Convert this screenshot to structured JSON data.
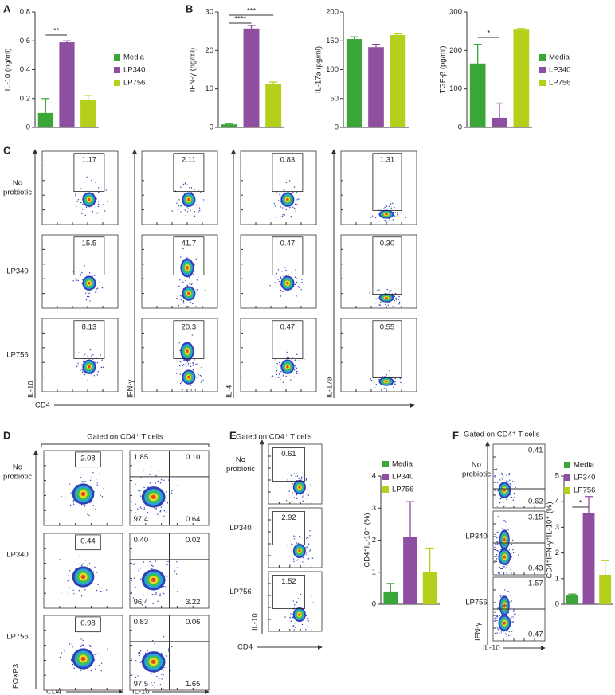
{
  "panel_labels": [
    "A",
    "B",
    "C",
    "D",
    "E",
    "F"
  ],
  "chart_data": [
    {
      "type": "bar",
      "y_label": "IL-10 (ng/ml)",
      "ylim": [
        0,
        0.8
      ],
      "yticks": [
        0,
        0.2,
        0.4,
        0.6,
        0.8
      ],
      "legend": true,
      "annotations": [
        "**"
      ],
      "series": [
        {
          "name": "Media",
          "color": "#3aa638",
          "values": [
            0.1
          ],
          "errors": [
            0.1
          ]
        },
        {
          "name": "LP340",
          "color": "#8e4fa0",
          "values": [
            0.59
          ],
          "errors": [
            0.01
          ]
        },
        {
          "name": "LP756",
          "color": "#b5cf1b",
          "values": [
            0.19
          ],
          "errors": [
            0.03
          ]
        }
      ]
    },
    {
      "type": "bar",
      "y_label": "IFN-γ (ng/ml)",
      "ylim": [
        0,
        30
      ],
      "yticks": [
        0,
        10,
        20,
        30
      ],
      "legend": false,
      "annotations": [
        "****",
        "***"
      ],
      "series": [
        {
          "name": "Media",
          "color": "#3aa638",
          "values": [
            0.8
          ],
          "errors": [
            0.2
          ]
        },
        {
          "name": "LP340",
          "color": "#8e4fa0",
          "values": [
            25.7
          ],
          "errors": [
            0.8
          ]
        },
        {
          "name": "LP756",
          "color": "#b5cf1b",
          "values": [
            11.3
          ],
          "errors": [
            0.5
          ]
        }
      ]
    },
    {
      "type": "bar",
      "y_label": "IL-17a (pg/ml)",
      "ylim": [
        0,
        200
      ],
      "yticks": [
        0,
        50,
        100,
        150,
        200
      ],
      "legend": false,
      "annotations": [],
      "series": [
        {
          "name": "Media",
          "color": "#3aa638",
          "values": [
            153
          ],
          "errors": [
            4
          ]
        },
        {
          "name": "LP340",
          "color": "#8e4fa0",
          "values": [
            139
          ],
          "errors": [
            5
          ]
        },
        {
          "name": "LP756",
          "color": "#b5cf1b",
          "values": [
            160
          ],
          "errors": [
            2
          ]
        }
      ]
    },
    {
      "type": "bar",
      "y_label": "TGF-β (pg/ml)",
      "ylim": [
        0,
        300
      ],
      "yticks": [
        0,
        100,
        200,
        300
      ],
      "legend": true,
      "annotations": [
        "*"
      ],
      "series": [
        {
          "name": "Media",
          "color": "#3aa638",
          "values": [
            166
          ],
          "errors": [
            50
          ]
        },
        {
          "name": "LP340",
          "color": "#8e4fa0",
          "values": [
            25
          ],
          "errors": [
            38
          ]
        },
        {
          "name": "LP756",
          "color": "#b5cf1b",
          "values": [
            254
          ],
          "errors": [
            3
          ]
        }
      ]
    },
    {
      "type": "bar",
      "y_label": "CD4⁺IL-10⁺ (%)",
      "ylim": [
        0,
        4
      ],
      "yticks": [
        0,
        1,
        2,
        3,
        4
      ],
      "legend": true,
      "annotations": [],
      "series": [
        {
          "name": "Media",
          "color": "#3aa638",
          "values": [
            0.4
          ],
          "errors": [
            0.25
          ]
        },
        {
          "name": "LP340",
          "color": "#8e4fa0",
          "values": [
            2.1
          ],
          "errors": [
            1.1
          ]
        },
        {
          "name": "LP756",
          "color": "#b5cf1b",
          "values": [
            1.0
          ],
          "errors": [
            0.75
          ]
        }
      ]
    },
    {
      "type": "bar",
      "y_label": "CD4⁺IFN-γ⁺IL-10⁺ (%)",
      "ylim": [
        0,
        5
      ],
      "yticks": [
        0,
        1,
        2,
        3,
        4,
        5
      ],
      "legend": true,
      "annotations": [
        "*"
      ],
      "series": [
        {
          "name": "Media",
          "color": "#3aa638",
          "values": [
            0.35
          ],
          "errors": [
            0.05
          ]
        },
        {
          "name": "LP340",
          "color": "#8e4fa0",
          "values": [
            3.55
          ],
          "errors": [
            0.65
          ]
        },
        {
          "name": "LP756",
          "color": "#b5cf1b",
          "values": [
            1.15
          ],
          "errors": [
            0.55
          ]
        }
      ]
    }
  ],
  "flow": {
    "C": {
      "row_labels": [
        [
          "No",
          "probiotic"
        ],
        [
          "LP340"
        ],
        [
          "LP756"
        ]
      ],
      "y_labels": [
        "IL-10",
        "IFN-γ",
        "IL-4",
        "IL-17a"
      ],
      "x_label": "CD4",
      "gates": [
        [
          "1.17",
          "2.11",
          "0.83",
          "1.31"
        ],
        [
          "15.5",
          "41.7",
          "0.47",
          "0.30"
        ],
        [
          "8.13",
          "20.3",
          "0.47",
          "0.55"
        ]
      ]
    },
    "D": {
      "header": "Gated on CD4⁺ T cells",
      "row_labels": [
        [
          "No",
          "probiotic"
        ],
        [
          "LP340"
        ],
        [
          "LP756"
        ]
      ],
      "y_label": "FOXP3",
      "x_labels": [
        "CD4",
        "IL-10"
      ],
      "gates": [
        "2.08",
        "0.44",
        "0.98"
      ],
      "quadrants": [
        [
          "1.85",
          "0.10",
          "97.4",
          "0.64"
        ],
        [
          "0.40",
          "0.02",
          "96.4",
          "3.22"
        ],
        [
          "0.83",
          "0.06",
          "97.5",
          "1.65"
        ]
      ]
    },
    "E": {
      "header": "Gated on CD4⁺ T cells",
      "row_labels": [
        [
          "No",
          "probiotic"
        ],
        [
          "LP340"
        ],
        [
          "LP756"
        ]
      ],
      "y_label": "IL-10",
      "x_label": "CD4",
      "gates": [
        "0.61",
        "2.92",
        "1.52"
      ]
    },
    "F": {
      "header": "Gated on CD4⁺ T cells",
      "row_labels": [
        [
          "No",
          "probiotic"
        ],
        [
          "LP340"
        ],
        [
          "LP756"
        ]
      ],
      "y_label": "IFN-γ",
      "x_label": "IL-10",
      "quadrants": [
        [
          "0.41",
          "0.62"
        ],
        [
          "3.15",
          "0.43"
        ],
        [
          "1.57",
          "0.47"
        ]
      ]
    }
  }
}
